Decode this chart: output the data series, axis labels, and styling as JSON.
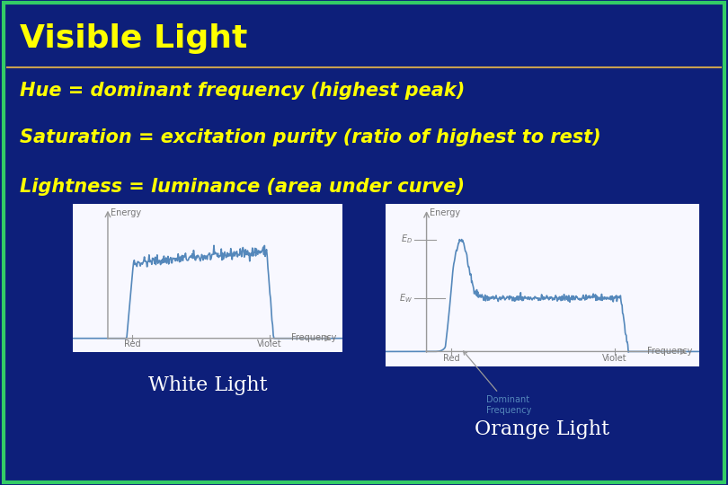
{
  "background_color": "#0d1f7a",
  "title": "Visible Light",
  "title_color": "#ffff00",
  "title_fontsize": 26,
  "border_top_color": "#33cc66",
  "border_bottom_color": "#33cc66",
  "separator_color": "#c8a050",
  "line1": "Hue = dominant frequency (highest peak)",
  "line2": "Saturation = excitation purity (ratio of highest to rest)",
  "line3": "Lightness = luminance (area under curve)",
  "body_text_color": "#ffff00",
  "body_fontsize": 15,
  "white_light_label": "White Light",
  "orange_light_label": "Orange Light",
  "label_color": "#ffffff",
  "label_fontsize": 16,
  "graph_bg": "#f8f8ff",
  "graph_line_color": "#5588bb",
  "graph_axis_color": "#999999",
  "graph_text_color": "#777777"
}
